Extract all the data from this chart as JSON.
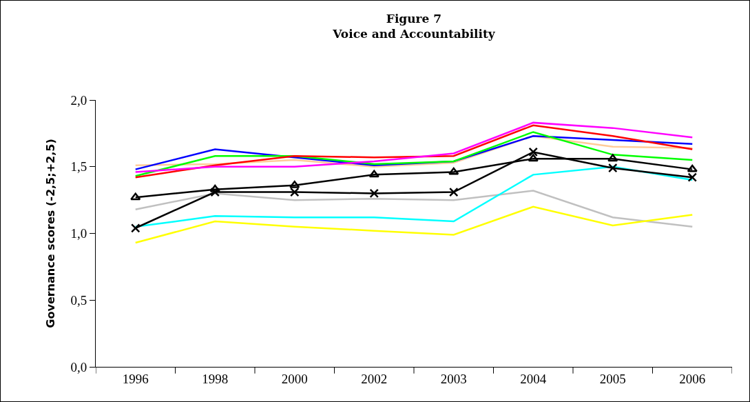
{
  "chart_data": {
    "type": "line",
    "title": "Figure 7",
    "subtitle": "Voice and Accountability",
    "ylabel": "Governance scores (-2,5;+2,5)",
    "categories": [
      "1996",
      "1998",
      "2000",
      "2002",
      "2003",
      "2004",
      "2005",
      "2006"
    ],
    "ylim": [
      0,
      2
    ],
    "yticks": [
      {
        "value": 0,
        "label": "0,0"
      },
      {
        "value": 0.5,
        "label": "0,5"
      },
      {
        "value": 1,
        "label": "1,0"
      },
      {
        "value": 1.5,
        "label": "1,5"
      },
      {
        "value": 2,
        "label": "2,0"
      }
    ],
    "grid": false,
    "marker": "none",
    "line_style": "solid",
    "series": [
      {
        "color": "#ffcc99",
        "values": [
          1.51,
          1.52,
          1.55,
          1.5,
          1.53,
          1.73,
          1.65,
          1.64
        ]
      },
      {
        "color": "#0000ff",
        "values": [
          1.48,
          1.63,
          1.57,
          1.51,
          1.54,
          1.73,
          1.7,
          1.67
        ]
      },
      {
        "color": "#00ff00",
        "values": [
          1.43,
          1.58,
          1.58,
          1.52,
          1.54,
          1.76,
          1.59,
          1.55
        ]
      },
      {
        "color": "#ff0000",
        "values": [
          1.42,
          1.51,
          1.58,
          1.57,
          1.58,
          1.81,
          1.73,
          1.63
        ]
      },
      {
        "color": "#ff00ff",
        "values": [
          1.46,
          1.5,
          1.5,
          1.54,
          1.6,
          1.83,
          1.79,
          1.72
        ]
      },
      {
        "color": "#c0c0c0",
        "values": [
          1.18,
          1.3,
          1.25,
          1.26,
          1.25,
          1.32,
          1.12,
          1.05
        ]
      },
      {
        "color": "#00ffff",
        "values": [
          1.05,
          1.13,
          1.12,
          1.12,
          1.09,
          1.44,
          1.5,
          1.4
        ]
      },
      {
        "color": "#ffff00",
        "values": [
          0.93,
          1.09,
          1.05,
          1.02,
          0.99,
          1.2,
          1.06,
          1.14
        ]
      },
      {
        "color": "#000000",
        "marker": "triangle",
        "values": [
          1.27,
          1.33,
          1.36,
          1.44,
          1.46,
          1.56,
          1.56,
          1.48
        ]
      },
      {
        "color": "#000000",
        "marker": "cross",
        "values": [
          1.04,
          1.31,
          1.31,
          1.3,
          1.31,
          1.61,
          1.49,
          1.42
        ]
      }
    ]
  }
}
